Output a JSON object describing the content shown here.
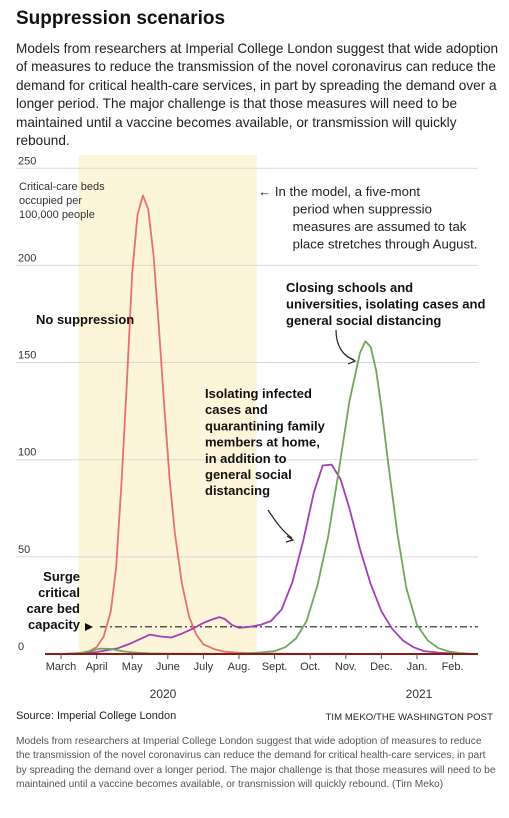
{
  "title": "Suppression scenarios",
  "intro": "Models from researchers at Imperial College London suggest that wide adoption of measures to reduce the transmission of the novel coronavirus can reduce the demand for critical health-care services, in part by spreading the demand over a longer period. The major challenge is that those measures will need to be maintained until a vaccine becomes available, or transmission will quickly rebound.",
  "source": "Source: Imperial College London",
  "credit": "TIM MEKO/THE WASHINGTON POST",
  "caption": "Models from researchers at Imperial College London suggest that wide adoption of measures to reduce the transmission of the novel coronavirus can reduce the demand for critical health-care services, in part by spreading the demand over a longer period. The major challenge is that those measures will need to be maintained until a vaccine becomes available, or transmission will quickly rebound. (Tim Meko)",
  "colors": {
    "no_suppression": "#e8716b",
    "isolating": "#a23fb5",
    "closing_schools": "#6ea85a",
    "shade": "#fcf5d9",
    "capacity": "#222222",
    "baseline": "#8b1a1a"
  },
  "chart_data": {
    "type": "line",
    "x_tick_labels": [
      "March",
      "April",
      "May",
      "June",
      "July",
      "Aug.",
      "Sept.",
      "Oct.",
      "Nov.",
      "Dec.",
      "Jan.",
      "Feb."
    ],
    "year_labels": [
      "2020",
      "2021"
    ],
    "y_ticks": [
      0,
      50,
      100,
      150,
      200,
      250
    ],
    "ylim": [
      0,
      250
    ],
    "ylabel": "Critical-care beds occupied per 100,000 people",
    "shaded_period": {
      "from": "April",
      "to": "Aug.",
      "annotation": "← In the model, a five-month period when suppression measures are assumed to take place stretches through August."
    },
    "capacity_line": {
      "value": 14,
      "label": "Surge critical care bed capacity"
    },
    "series": [
      {
        "name": "No suppression",
        "color_key": "no_suppression",
        "x": [
          0.0,
          0.3,
          0.6,
          0.8,
          1.0,
          1.2,
          1.4,
          1.55,
          1.7,
          1.85,
          2.0,
          2.15,
          2.3,
          2.45,
          2.6,
          2.75,
          2.9,
          3.05,
          3.2,
          3.4,
          3.6,
          3.8,
          4.0,
          4.3,
          4.6,
          5.0,
          5.5,
          6.0,
          7.0,
          8.0,
          9.0,
          10.0,
          11.0,
          11.6
        ],
        "y": [
          0,
          0.2,
          0.6,
          1.5,
          3.5,
          9,
          22,
          45,
          88,
          140,
          196,
          226,
          236,
          229,
          205,
          168,
          128,
          90,
          62,
          36,
          19,
          10,
          5,
          2.5,
          1.2,
          0.6,
          0.3,
          0.2,
          0.1,
          0.1,
          0,
          0,
          0,
          0
        ]
      },
      {
        "name": "Isolating infected cases and quarantining family members at home, in addition to general social distancing",
        "color_key": "isolating",
        "x": [
          0.0,
          0.5,
          1.0,
          1.3,
          1.6,
          1.9,
          2.2,
          2.5,
          2.8,
          3.1,
          3.4,
          3.7,
          4.0,
          4.2,
          4.45,
          4.6,
          4.8,
          5.0,
          5.3,
          5.6,
          5.9,
          6.2,
          6.5,
          6.8,
          7.1,
          7.35,
          7.6,
          7.85,
          8.1,
          8.4,
          8.7,
          9.0,
          9.3,
          9.6,
          9.9,
          10.2,
          10.6,
          11.0,
          11.6
        ],
        "y": [
          0,
          0.3,
          1,
          2,
          3,
          5,
          7.5,
          10,
          9,
          8.5,
          10.5,
          13,
          16,
          17.5,
          19,
          18,
          15,
          13.5,
          14,
          15,
          17,
          23,
          37,
          58,
          83,
          97,
          97.5,
          90,
          75,
          54,
          36,
          22,
          13,
          7,
          3.5,
          1.5,
          0.7,
          0.3,
          0
        ]
      },
      {
        "name": "Closing schools and universities, isolating cases and general social distancing",
        "color_key": "closing_schools",
        "x": [
          0.0,
          0.5,
          0.8,
          1.1,
          1.4,
          1.7,
          2.0,
          2.5,
          3.0,
          4.0,
          5.0,
          5.5,
          6.0,
          6.3,
          6.6,
          6.9,
          7.2,
          7.5,
          7.8,
          8.1,
          8.4,
          8.55,
          8.7,
          8.85,
          9.0,
          9.2,
          9.45,
          9.7,
          10.0,
          10.3,
          10.6,
          10.9,
          11.2,
          11.6
        ],
        "y": [
          0,
          0.4,
          1.5,
          2.8,
          2.6,
          1.5,
          0.8,
          0.3,
          0.2,
          0.1,
          0.2,
          0.6,
          1.5,
          3.5,
          8,
          17,
          35,
          60,
          94,
          130,
          155,
          161,
          158,
          146,
          127,
          97,
          62,
          34,
          15,
          7,
          3,
          1.3,
          0.5,
          0
        ]
      }
    ],
    "annotations": [
      {
        "text_lines": [
          "No suppression"
        ],
        "series": "no_suppression"
      },
      {
        "text_lines": [
          "Isolating infected",
          "cases and",
          "quarantining family",
          "members at home,",
          "in addition to",
          "general social",
          "distancing"
        ],
        "series": "isolating"
      },
      {
        "text_lines": [
          "Closing schools and",
          "universities, isolating cases and",
          "general social distancing"
        ],
        "series": "closing_schools"
      }
    ]
  }
}
